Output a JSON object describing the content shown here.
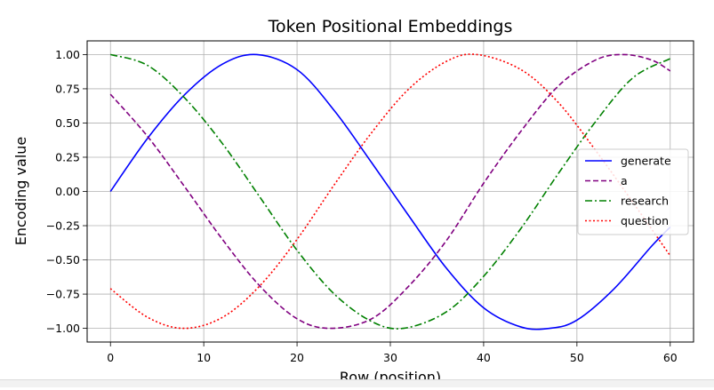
{
  "chart_data": {
    "type": "line",
    "title": "Token Positional Embeddings",
    "xlabel": "Row (position)",
    "ylabel": "Encoding value",
    "xlim": [
      -2.5,
      62.5
    ],
    "ylim": [
      -1.1,
      1.1
    ],
    "xticks": [
      0,
      10,
      20,
      30,
      40,
      50,
      60
    ],
    "xtick_labels": [
      "0",
      "10",
      "20",
      "30",
      "40",
      "50",
      "60"
    ],
    "yticks": [
      -1.0,
      -0.75,
      -0.5,
      -0.25,
      0.0,
      0.25,
      0.5,
      0.75,
      1.0
    ],
    "ytick_labels": [
      "−1.00",
      "−0.75",
      "−0.50",
      "−0.25",
      "0.00",
      "0.25",
      "0.50",
      "0.75",
      "1.00"
    ],
    "grid": true,
    "legend_position": "center-right",
    "series": [
      {
        "name": "generate",
        "color": "#0000ff",
        "style": "solid",
        "x": [
          0,
          4,
          8,
          12,
          15.7,
          20,
          24,
          28,
          32,
          36,
          40,
          44,
          47.1,
          50,
          54,
          58,
          60
        ],
        "y": [
          0.0,
          0.39,
          0.71,
          0.93,
          1.0,
          0.89,
          0.59,
          0.21,
          -0.18,
          -0.56,
          -0.85,
          -0.99,
          -1.0,
          -0.94,
          -0.71,
          -0.4,
          -0.26
        ]
      },
      {
        "name": "a",
        "color": "#800080",
        "style": "dashed",
        "x": [
          0,
          4,
          8,
          12,
          16,
          20,
          23.6,
          28,
          32,
          36,
          40,
          44,
          48,
          52,
          55,
          58,
          60
        ],
        "y": [
          0.71,
          0.4,
          0.03,
          -0.35,
          -0.69,
          -0.93,
          -1.0,
          -0.93,
          -0.69,
          -0.36,
          0.06,
          0.44,
          0.77,
          0.96,
          1.0,
          0.96,
          0.88
        ]
      },
      {
        "name": "research",
        "color": "#008000",
        "style": "dashdot",
        "x": [
          0,
          4,
          8,
          12,
          16,
          20,
          24,
          28,
          31.4,
          36,
          40,
          44,
          48,
          52,
          56,
          60
        ],
        "y": [
          1.0,
          0.92,
          0.68,
          0.35,
          -0.04,
          -0.43,
          -0.75,
          -0.95,
          -1.0,
          -0.88,
          -0.62,
          -0.27,
          0.13,
          0.51,
          0.83,
          0.97
        ]
      },
      {
        "name": "question",
        "color": "#ff0000",
        "style": "dotted",
        "x": [
          0,
          4,
          7.9,
          12,
          16,
          20,
          24,
          28,
          32,
          36,
          39.3,
          44,
          48,
          52,
          56,
          60
        ],
        "y": [
          -0.71,
          -0.92,
          -1.0,
          -0.92,
          -0.69,
          -0.35,
          0.05,
          0.43,
          0.75,
          0.95,
          1.0,
          0.89,
          0.65,
          0.3,
          -0.08,
          -0.47
        ]
      }
    ]
  }
}
